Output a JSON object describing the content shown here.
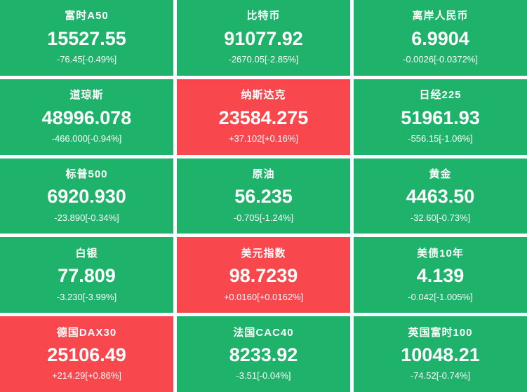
{
  "colors": {
    "down": "#1fb26a",
    "up": "#f8484e",
    "background": "#ffffff",
    "text": "#ffffff"
  },
  "tiles": [
    {
      "name": "富时A50",
      "value": "15527.55",
      "change": "-76.45[-0.49%]",
      "direction": "down"
    },
    {
      "name": "比特币",
      "value": "91077.92",
      "change": "-2670.05[-2.85%]",
      "direction": "down"
    },
    {
      "name": "离岸人民币",
      "value": "6.9904",
      "change": "-0.0026[-0.0372%]",
      "direction": "down"
    },
    {
      "name": "道琼斯",
      "value": "48996.078",
      "change": "-466.000[-0.94%]",
      "direction": "down"
    },
    {
      "name": "纳斯达克",
      "value": "23584.275",
      "change": "+37.102[+0.16%]",
      "direction": "up"
    },
    {
      "name": "日经225",
      "value": "51961.93",
      "change": "-556.15[-1.06%]",
      "direction": "down"
    },
    {
      "name": "标普500",
      "value": "6920.930",
      "change": "-23.890[-0.34%]",
      "direction": "down"
    },
    {
      "name": "原油",
      "value": "56.235",
      "change": "-0.705[-1.24%]",
      "direction": "down"
    },
    {
      "name": "黄金",
      "value": "4463.50",
      "change": "-32.60[-0.73%]",
      "direction": "down"
    },
    {
      "name": "白银",
      "value": "77.809",
      "change": "-3.230[-3.99%]",
      "direction": "down"
    },
    {
      "name": "美元指数",
      "value": "98.7239",
      "change": "+0.0160[+0.0162%]",
      "direction": "up"
    },
    {
      "name": "美债10年",
      "value": "4.139",
      "change": "-0.042[-1.005%]",
      "direction": "down"
    },
    {
      "name": "德国DAX30",
      "value": "25106.49",
      "change": "+214.29[+0.86%]",
      "direction": "up"
    },
    {
      "name": "法国CAC40",
      "value": "8233.92",
      "change": "-3.51[-0.04%]",
      "direction": "down"
    },
    {
      "name": "英国富时100",
      "value": "10048.21",
      "change": "-74.52[-0.74%]",
      "direction": "down"
    }
  ]
}
